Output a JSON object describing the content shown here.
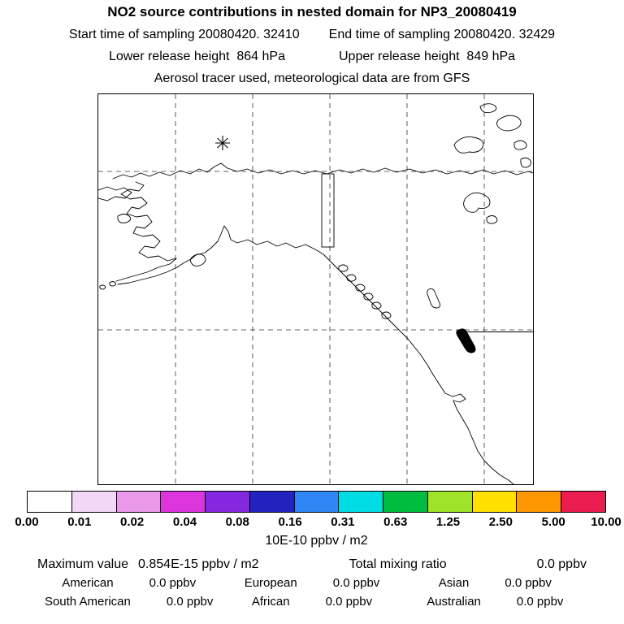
{
  "title": "NO2 source contributions in nested domain for NP3_20080419",
  "header": {
    "start_time": "Start time of sampling 20080420. 32410",
    "end_time": "End time of sampling 20080420. 32429",
    "lower_release": "Lower release height  864 hPa",
    "upper_release": "Upper release height  849 hPa",
    "tracer_line": "Aerosol tracer used, meteorological data are from GFS"
  },
  "colorbar": {
    "ticks": [
      "0.00",
      "0.01",
      "0.02",
      "0.04",
      "0.08",
      "0.16",
      "0.31",
      "0.63",
      "1.25",
      "2.50",
      "5.00",
      "10.00"
    ],
    "colors": [
      "#ffffff",
      "#f1d8f5",
      "#ea9ae9",
      "#dd35dd",
      "#8428e0",
      "#2323c0",
      "#2f86f5",
      "#00dce4",
      "#00bd3f",
      "#9fe32a",
      "#ffe000",
      "#ff9700",
      "#ea1c50"
    ],
    "units": "10E-10 ppbv / m2"
  },
  "stats": {
    "max_label": "Maximum value",
    "max_value": "0.854E-15 ppbv / m2",
    "total_label": "Total mixing ratio",
    "total_value": "0.0 ppbv"
  },
  "contributions": {
    "rows": [
      [
        {
          "label": "American",
          "value": "0.0 ppbv"
        },
        {
          "label": "European",
          "value": "0.0 ppbv"
        },
        {
          "label": "Asian",
          "value": "0.0 ppbv"
        }
      ],
      [
        {
          "label": "South American",
          "value": "0.0 ppbv"
        },
        {
          "label": "African",
          "value": "0.0 ppbv"
        },
        {
          "label": "Australian",
          "value": "0.0 ppbv"
        }
      ]
    ]
  },
  "chart_data": {
    "type": "heatmap",
    "title": "NO2 source contributions in nested domain for NP3_20080419",
    "subtitle_lines": [
      "Start time of sampling 20080420. 32410   End time of sampling 20080420. 32429",
      "Lower release height 864 hPa   Upper release height 849 hPa",
      "Aerosol tracer used, meteorological data are from GFS"
    ],
    "map_region": "Alaska / North Pacific / western North America with dashed lat-lon gridlines, release location marked by asterisk",
    "colorbar_ticks": [
      0.0,
      0.01,
      0.02,
      0.04,
      0.08,
      0.16,
      0.31,
      0.63,
      1.25,
      2.5,
      5.0,
      10.0
    ],
    "colorbar_units": "10E-10 ppbv / m2",
    "field_values": "no shaded concentration contours visible (field effectively zero everywhere)",
    "maximum_value": "0.854E-15 ppbv / m2",
    "total_mixing_ratio": "0.0 ppbv",
    "source_contributions_ppbv": {
      "American": 0.0,
      "European": 0.0,
      "Asian": 0.0,
      "South American": 0.0,
      "African": 0.0,
      "Australian": 0.0
    },
    "legend_position": "bottom"
  }
}
